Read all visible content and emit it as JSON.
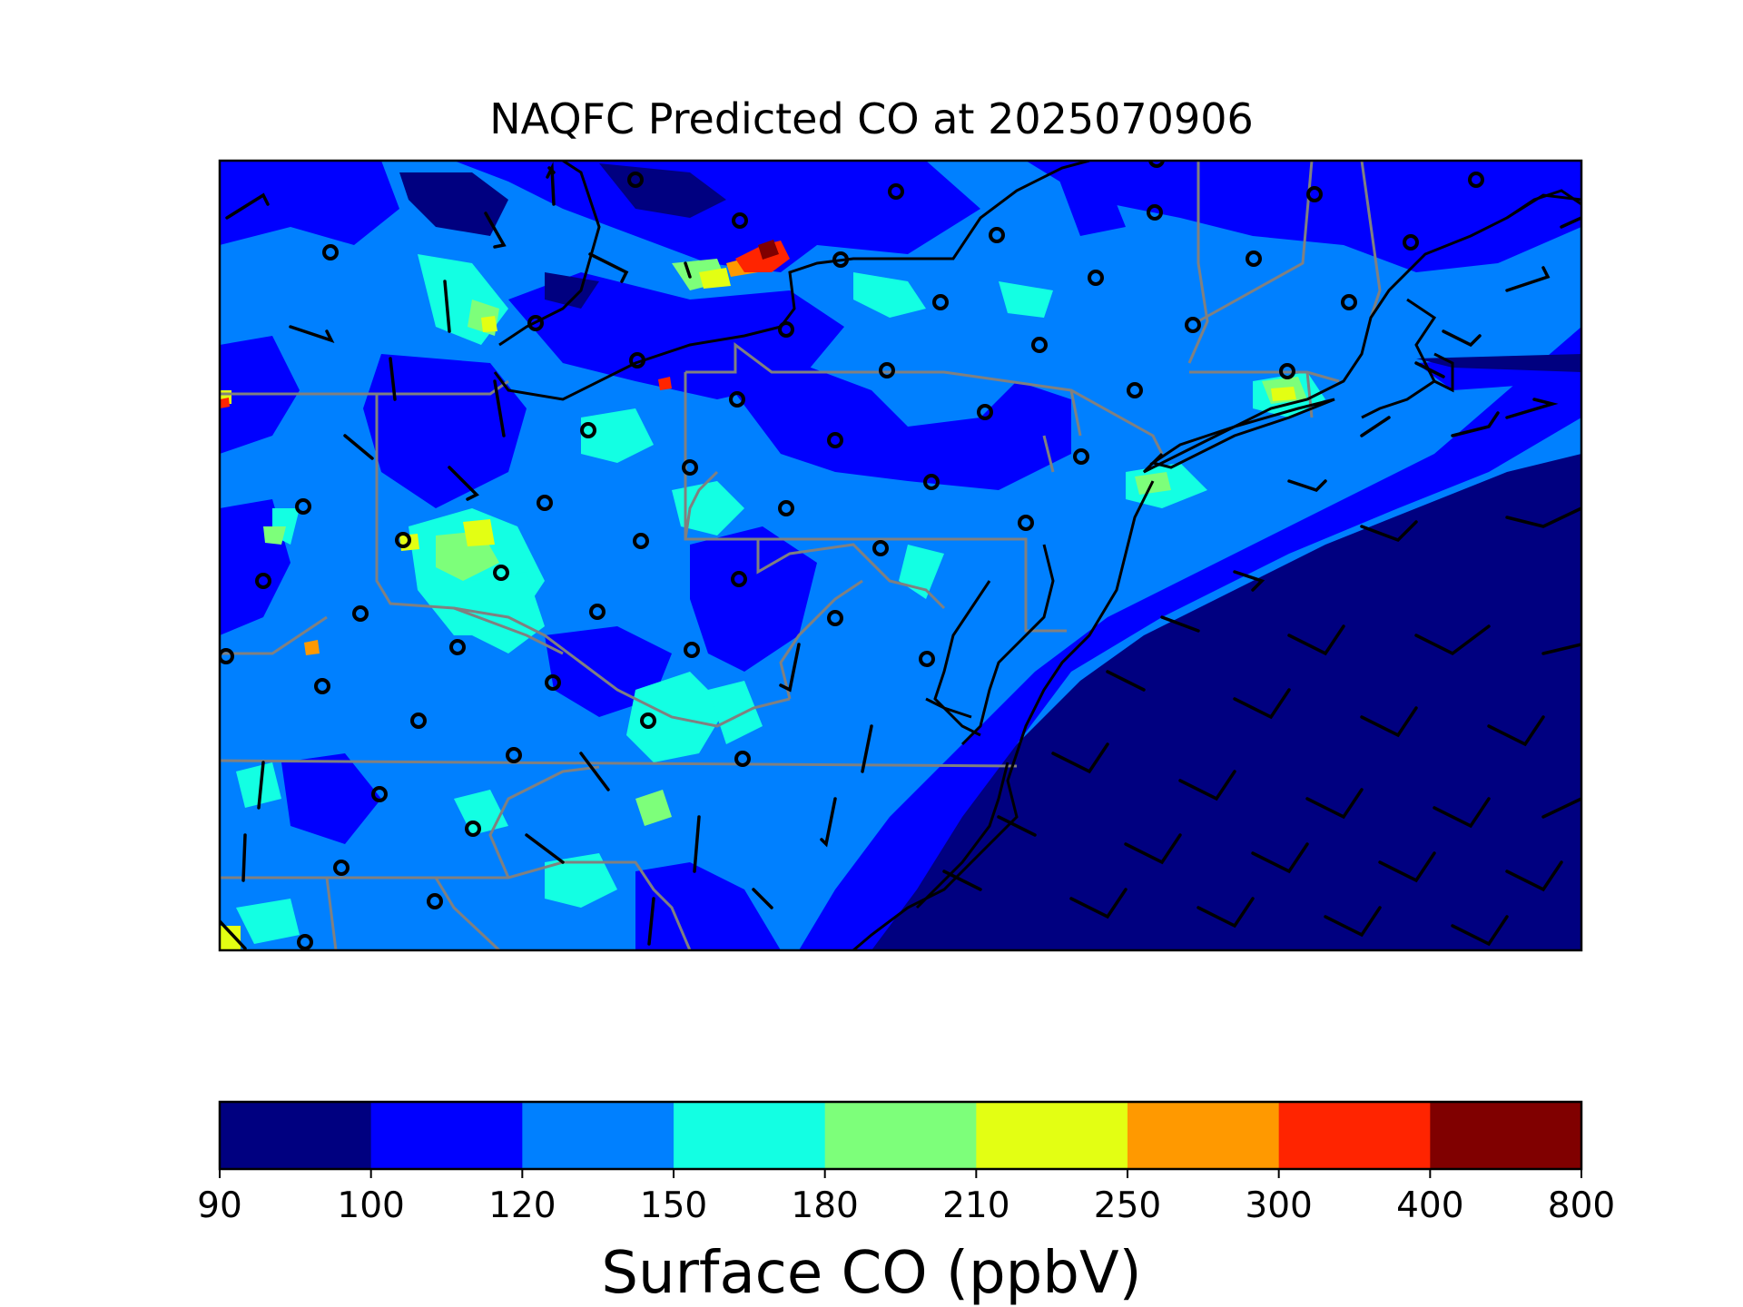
{
  "figure": {
    "title": "NAQFC Predicted CO at 2025070906"
  },
  "colorbar": {
    "label": "Surface CO (ppbV)",
    "levels": [
      "90",
      "100",
      "120",
      "150",
      "180",
      "210",
      "250",
      "300",
      "400",
      "800"
    ],
    "colors": [
      "#000080",
      "#0000ff",
      "#0080ff",
      "#13ffe3",
      "#7dff7a",
      "#e3ff13",
      "#ff9900",
      "#ff2400",
      "#800000"
    ]
  },
  "map": {
    "region": "US Mid-Atlantic and Northeast",
    "overlays": [
      "state-boundaries",
      "coastlines",
      "wind-barbs",
      "observation-sites"
    ],
    "background_level": "120-150",
    "offshore_level": "90-100"
  }
}
